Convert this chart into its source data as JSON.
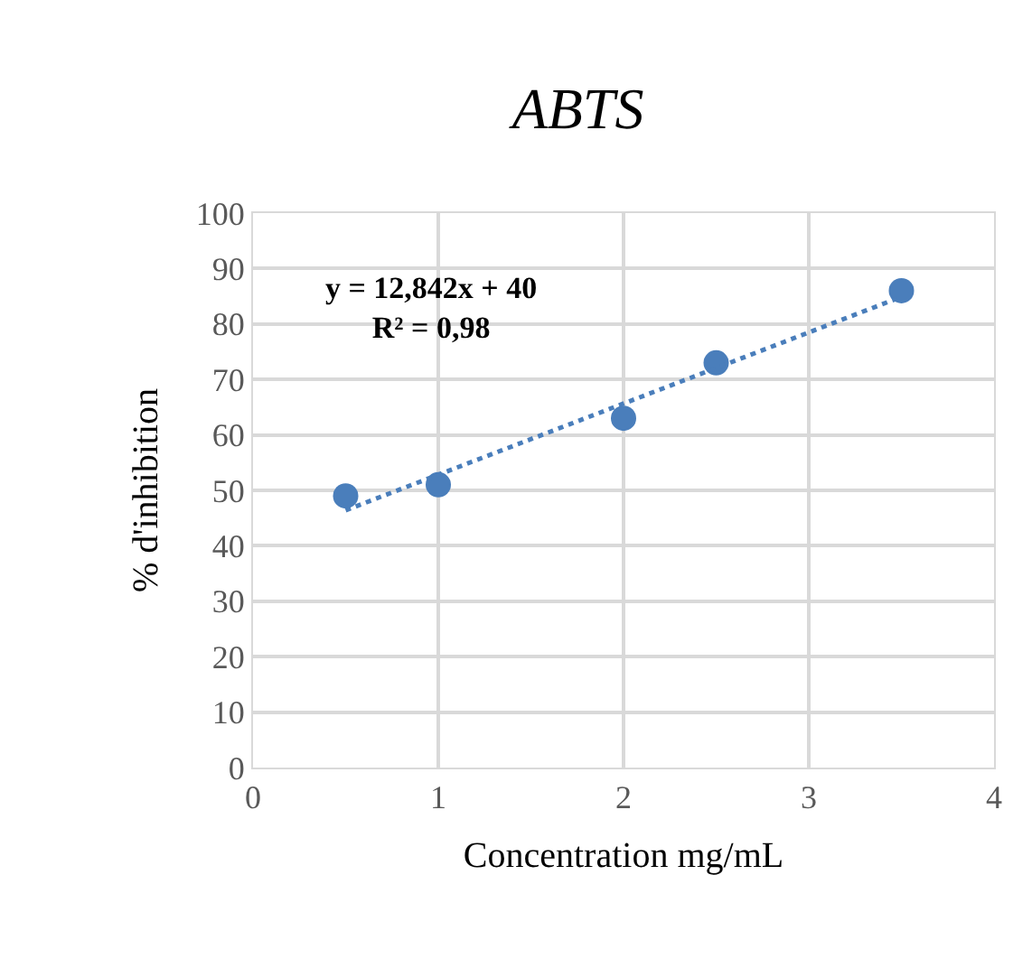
{
  "chart_data": {
    "type": "scatter",
    "title": "ABTS",
    "xlabel": "Concentration mg/mL",
    "ylabel": "% d'inhibition",
    "x": [
      0.5,
      1,
      2,
      2.5,
      3.5
    ],
    "series": [
      {
        "color": "#4a7ebb",
        "values": [
          49,
          51,
          63,
          73,
          86
        ],
        "marker": "circle"
      },
      {
        "type": "line",
        "color": "#4a7ebb",
        "x": [
          0.5,
          3.5
        ],
        "values": [
          46.4,
          84.9
        ],
        "line_style": "dotted",
        "marker": "none"
      }
    ],
    "annotations": [
      "y = 12,842x + 40\nR² = 0,98"
    ],
    "xlim": [
      0,
      4
    ],
    "xticks": [
      0,
      1,
      2,
      3,
      4
    ],
    "ylim": [
      0,
      100
    ],
    "yticks": [
      0,
      10,
      20,
      30,
      40,
      50,
      60,
      70,
      80,
      90,
      100
    ],
    "grid": true,
    "legend": false
  }
}
